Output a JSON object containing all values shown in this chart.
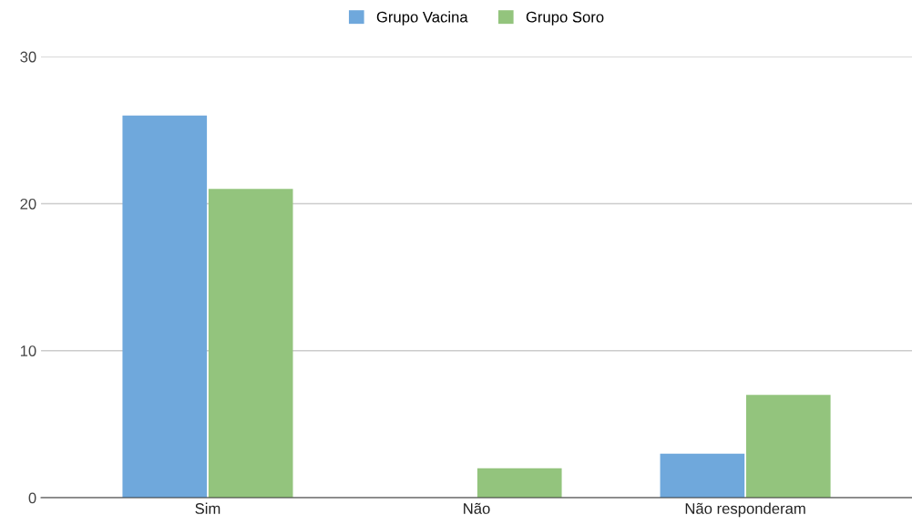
{
  "chart_data": {
    "type": "bar",
    "categories": [
      "Sim",
      "Não",
      "Não responderam"
    ],
    "series": [
      {
        "name": "Grupo Vacina",
        "color": "#6fa8dc",
        "values": [
          26,
          0,
          3
        ]
      },
      {
        "name": "Grupo Soro",
        "color": "#93c47d",
        "values": [
          21,
          2,
          7
        ]
      }
    ],
    "ylim": [
      0,
      30
    ],
    "yticks": [
      0,
      10,
      20,
      30
    ],
    "grid": "y",
    "legend": "top"
  }
}
